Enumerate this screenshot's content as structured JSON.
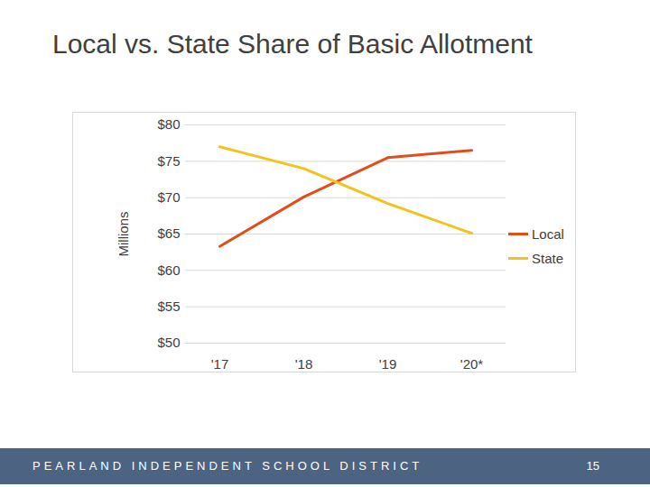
{
  "chart_data": {
    "type": "line",
    "title": "Local vs. State Share of Basic Allotment",
    "y_label": "Millions",
    "categories": [
      "'17",
      "'18",
      "'19",
      "'20*"
    ],
    "series": [
      {
        "name": "Local",
        "color": "#e04e1b",
        "values": [
          63.3,
          70.1,
          75.5,
          76.5
        ]
      },
      {
        "name": "State",
        "color": "#f2c31c",
        "values": [
          77.0,
          74.0,
          69.2,
          65.1
        ]
      }
    ],
    "ylim": [
      50,
      80
    ],
    "yticks": [
      {
        "value": 50,
        "label": "$50"
      },
      {
        "value": 55,
        "label": "$55"
      },
      {
        "value": 60,
        "label": "$60"
      },
      {
        "value": 65,
        "label": "$65"
      },
      {
        "value": 70,
        "label": "$70"
      },
      {
        "value": 75,
        "label": "$75"
      },
      {
        "value": 80,
        "label": "$80"
      }
    ],
    "grid": true,
    "legend": "right"
  },
  "footer": {
    "text": "PEARLAND INDEPENDENT SCHOOL DISTRICT",
    "page": 15
  }
}
